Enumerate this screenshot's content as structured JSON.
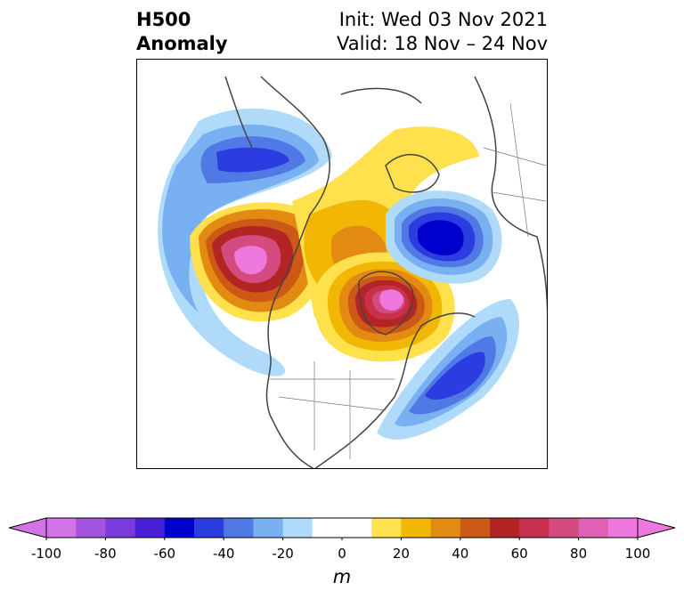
{
  "title": {
    "left_line1": "H500",
    "left_line2": "Anomaly",
    "right_line1": "Init: Wed 03 Nov 2021",
    "right_line2": "Valid: 18 Nov – 24 Nov"
  },
  "colorbar": {
    "unit": "m",
    "min": -100,
    "max": 100,
    "step": 10,
    "extend": "both",
    "colors": [
      "#d373e8",
      "#a355e0",
      "#7a3cdc",
      "#4a1fd8",
      "#0000cd",
      "#2b3ce0",
      "#5079e6",
      "#78b0f2",
      "#b0dafa",
      "#ffffff",
      "#ffffff",
      "#ffe04d",
      "#f2b705",
      "#e38a12",
      "#cc5a16",
      "#b32525",
      "#c8304e",
      "#d44c7f",
      "#e060b6",
      "#ee78de"
    ],
    "ticks": [
      {
        "value": -100,
        "label": "-100"
      },
      {
        "value": -80,
        "label": "-80"
      },
      {
        "value": -60,
        "label": "-60"
      },
      {
        "value": -40,
        "label": "-40"
      },
      {
        "value": -20,
        "label": "-20"
      },
      {
        "value": 0,
        "label": "0"
      },
      {
        "value": 20,
        "label": "20"
      },
      {
        "value": 40,
        "label": "40"
      },
      {
        "value": 60,
        "label": "60"
      },
      {
        "value": 80,
        "label": "80"
      },
      {
        "value": 100,
        "label": "100"
      }
    ]
  },
  "map": {
    "projection": "polar stereographic, North Pole",
    "field": "500 hPa geopotential height anomaly",
    "features": [
      {
        "name": "negative anomaly over eastern Siberia / Bering region",
        "peak": -60
      },
      {
        "name": "positive anomaly over Alaska / Beaufort Sea",
        "peak": 90
      },
      {
        "name": "positive anomaly over Greenland",
        "peak": 90
      },
      {
        "name": "negative anomaly over Scandinavia / Barents region",
        "peak": -70
      },
      {
        "name": "negative anomaly over central North Atlantic",
        "peak": -50
      }
    ]
  }
}
